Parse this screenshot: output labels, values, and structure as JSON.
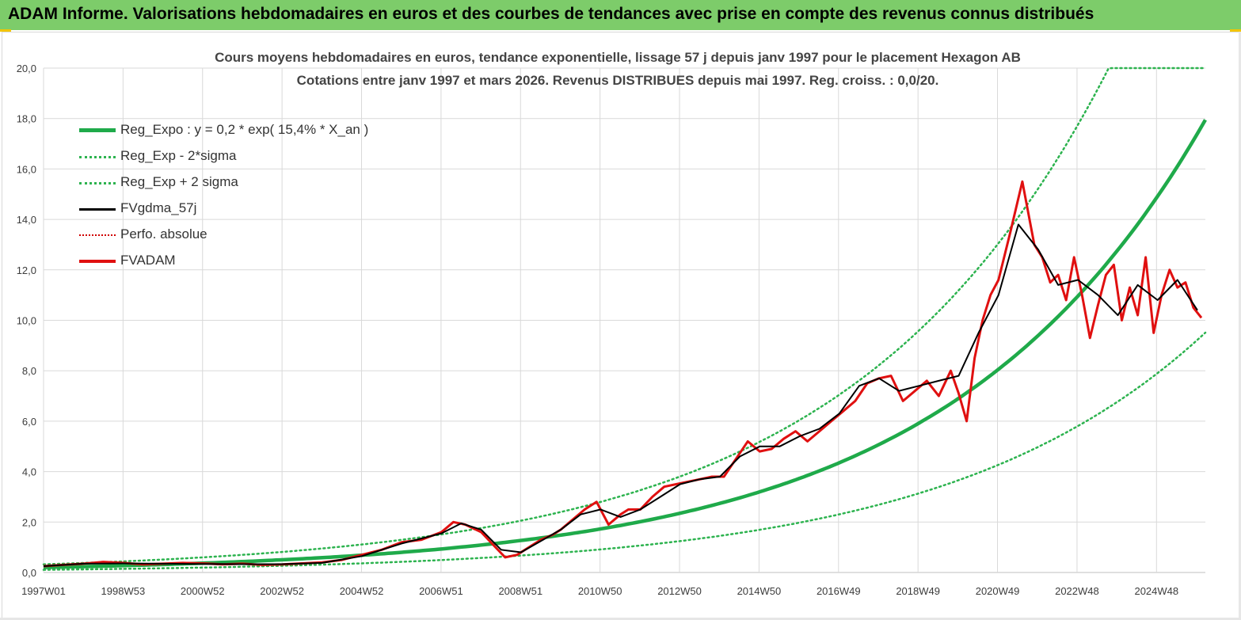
{
  "header": {
    "title": "ADAM Informe. Valorisations hebdomadaires en euros et des courbes de tendances avec prise en compte des revenus connus distribués"
  },
  "chart_data": {
    "type": "line",
    "title": "Cours moyens hebdomadaires en euros, tendance exponentielle, lissage 57 j depuis janv 1997 pour le placement Hexagon AB",
    "subtitle": "Cotations entre janv 1997 et mars 2026. Revenus DISTRIBUES depuis mai 1997. Reg. croiss. : 0,0/20.",
    "xlabel": "",
    "ylabel": "",
    "x_tick_labels": [
      "1997W01",
      "1998W53",
      "2000W52",
      "2002W52",
      "2004W52",
      "2006W51",
      "2008W51",
      "2010W50",
      "2012W50",
      "2014W50",
      "2016W49",
      "2018W49",
      "2020W49",
      "2022W48",
      "2024W48"
    ],
    "x_range": [
      1997.0,
      2026.2
    ],
    "y_tick_labels": [
      "0,0",
      "2,0",
      "4,0",
      "6,0",
      "8,0",
      "10,0",
      "12,0",
      "14,0",
      "16,0",
      "18,0",
      "20,0"
    ],
    "ylim": [
      0,
      20
    ],
    "grid": true,
    "legend_position": "top-left",
    "colors": {
      "regression": "#1faa4a",
      "sigma": "#2db34f",
      "smoothed": "#000000",
      "absolute": "#d00000",
      "price": "#e01010",
      "banner": "#7dcc6a"
    },
    "regression": {
      "a": 0.2,
      "rate": 0.154,
      "start_year": 1997.0,
      "sigma_factor_lower": 0.53,
      "sigma_factor_upper": 1.62
    },
    "series": [
      {
        "name": "Reg_Expo : y = 0,2 * exp( 15,4% *  X_an )",
        "style": "solid-thick",
        "key": "regression"
      },
      {
        "name": "Reg_Exp - 2*sigma",
        "style": "dotted",
        "key": "lower"
      },
      {
        "name": "Reg_Exp + 2 sigma",
        "style": "dotted",
        "key": "upper"
      },
      {
        "name": "FVgdma_57j",
        "style": "solid",
        "key": "smoothed"
      },
      {
        "name": "Perfo. absolue",
        "style": "dotted-red",
        "key": "absolute"
      },
      {
        "name": "FVADAM",
        "style": "solid-red-thick",
        "key": "price"
      }
    ],
    "price_points": {
      "x": [
        1997.0,
        1997.5,
        1998.0,
        1998.5,
        1999.0,
        1999.5,
        2000.0,
        2000.5,
        2001.0,
        2001.5,
        2002.0,
        2002.5,
        2003.0,
        2003.5,
        2004.0,
        2004.5,
        2005.0,
        2005.5,
        2006.0,
        2006.5,
        2007.0,
        2007.3,
        2007.6,
        2008.0,
        2008.3,
        2008.6,
        2008.9,
        2009.2,
        2009.5,
        2009.8,
        2010.0,
        2010.3,
        2010.6,
        2010.9,
        2011.2,
        2011.5,
        2011.7,
        2012.0,
        2012.3,
        2012.6,
        2012.9,
        2013.2,
        2013.5,
        2013.8,
        2014.1,
        2014.4,
        2014.7,
        2015.0,
        2015.3,
        2015.6,
        2015.9,
        2016.2,
        2016.5,
        2016.8,
        2017.1,
        2017.4,
        2017.7,
        2018.0,
        2018.3,
        2018.6,
        2018.9,
        2019.2,
        2019.5,
        2019.8,
        2020.0,
        2020.2,
        2020.4,
        2020.6,
        2020.8,
        2021.0,
        2021.3,
        2021.6,
        2021.9,
        2022.1,
        2022.3,
        2022.5,
        2022.7,
        2022.9,
        2023.1,
        2023.3,
        2023.5,
        2023.7,
        2023.9,
        2024.1,
        2024.3,
        2024.5,
        2024.7,
        2024.9,
        2025.1,
        2025.3,
        2025.5,
        2025.7,
        2025.9,
        2026.1
      ],
      "y": [
        0.25,
        0.3,
        0.35,
        0.42,
        0.38,
        0.32,
        0.35,
        0.38,
        0.36,
        0.32,
        0.35,
        0.3,
        0.32,
        0.36,
        0.4,
        0.5,
        0.7,
        0.9,
        1.2,
        1.3,
        1.6,
        2.0,
        1.9,
        1.6,
        1.1,
        0.6,
        0.7,
        1.0,
        1.3,
        1.5,
        1.7,
        2.1,
        2.5,
        2.8,
        1.9,
        2.3,
        2.5,
        2.5,
        3.0,
        3.4,
        3.5,
        3.6,
        3.7,
        3.8,
        3.8,
        4.5,
        5.2,
        4.8,
        4.9,
        5.3,
        5.6,
        5.2,
        5.6,
        6.0,
        6.4,
        6.8,
        7.5,
        7.7,
        7.8,
        6.8,
        7.2,
        7.6,
        7.0,
        8.0,
        7.1,
        6.0,
        8.5,
        10.0,
        11.0,
        11.6,
        13.5,
        15.5,
        13.0,
        12.5,
        11.5,
        11.8,
        10.8,
        12.5,
        11.0,
        9.3,
        10.6,
        11.8,
        12.2,
        10.0,
        11.3,
        10.2,
        12.5,
        9.5,
        11.0,
        12.0,
        11.3,
        11.5,
        10.5,
        10.1
      ]
    },
    "smoothed_points": {
      "x": [
        1997.0,
        1998.0,
        1999.0,
        2000.0,
        2001.0,
        2002.0,
        2003.0,
        2004.0,
        2005.0,
        2006.0,
        2007.0,
        2007.5,
        2008.0,
        2008.5,
        2009.0,
        2009.5,
        2010.0,
        2010.5,
        2011.0,
        2011.5,
        2012.0,
        2012.5,
        2013.0,
        2013.5,
        2014.0,
        2014.5,
        2015.0,
        2015.5,
        2016.0,
        2016.5,
        2017.0,
        2017.5,
        2018.0,
        2018.5,
        2019.0,
        2019.5,
        2020.0,
        2020.5,
        2021.0,
        2021.5,
        2022.0,
        2022.5,
        2023.0,
        2023.5,
        2024.0,
        2024.5,
        2025.0,
        2025.5,
        2026.0
      ],
      "y": [
        0.25,
        0.35,
        0.36,
        0.35,
        0.34,
        0.33,
        0.33,
        0.38,
        0.65,
        1.15,
        1.55,
        1.95,
        1.7,
        0.9,
        0.8,
        1.25,
        1.7,
        2.3,
        2.5,
        2.2,
        2.5,
        3.0,
        3.5,
        3.7,
        3.8,
        4.6,
        5.0,
        5.0,
        5.4,
        5.7,
        6.3,
        7.4,
        7.7,
        7.2,
        7.4,
        7.6,
        7.8,
        9.5,
        11.0,
        13.8,
        12.8,
        11.4,
        11.6,
        11.0,
        10.2,
        11.4,
        10.8,
        11.6,
        10.4
      ]
    }
  }
}
